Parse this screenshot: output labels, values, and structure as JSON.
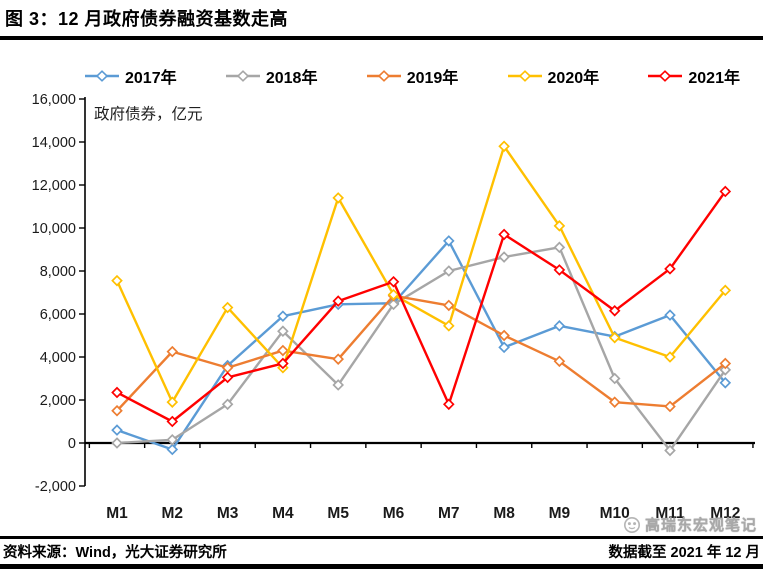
{
  "title": "图 3：12 月政府债券融资基数走高",
  "chart_data": {
    "type": "line",
    "title": "图 3：12 月政府债券融资基数走高",
    "ylabel_inside": "政府债券，亿元",
    "categories": [
      "M1",
      "M2",
      "M3",
      "M4",
      "M5",
      "M6",
      "M7",
      "M8",
      "M9",
      "M10",
      "M11",
      "M12"
    ],
    "series": [
      {
        "name": "2017年",
        "color": "#5B9BD5",
        "values": [
          600,
          -300,
          3600,
          5900,
          6450,
          6500,
          9400,
          4450,
          5450,
          4950,
          5950,
          2800
        ]
      },
      {
        "name": "2018年",
        "color": "#A6A6A6",
        "values": [
          0,
          150,
          1800,
          5200,
          2700,
          6450,
          8000,
          8650,
          9100,
          3000,
          -350,
          3400
        ]
      },
      {
        "name": "2019年",
        "color": "#ED7D31",
        "values": [
          1500,
          4250,
          3500,
          4300,
          3900,
          6850,
          6400,
          5000,
          3800,
          1900,
          1700,
          3700
        ]
      },
      {
        "name": "2020年",
        "color": "#FFC000",
        "values": [
          7550,
          1900,
          6300,
          3500,
          11400,
          6900,
          5450,
          13800,
          10100,
          4900,
          4000,
          7100
        ]
      },
      {
        "name": "2021年",
        "color": "#FF0000",
        "values": [
          2350,
          1000,
          3050,
          3700,
          6600,
          7500,
          1800,
          9700,
          8050,
          6150,
          8100,
          11700
        ]
      }
    ],
    "ylim": [
      -2000,
      16000
    ],
    "ytick_step": 2000,
    "grid": false,
    "legend_position": "top",
    "marker": "diamond"
  },
  "footer": {
    "source": "资料来源：Wind，光大证券研究所",
    "note": "数据截至 2021 年 12 月"
  },
  "watermark": {
    "text": "高瑞东宏观笔记",
    "logo": "panda-logo-icon"
  }
}
